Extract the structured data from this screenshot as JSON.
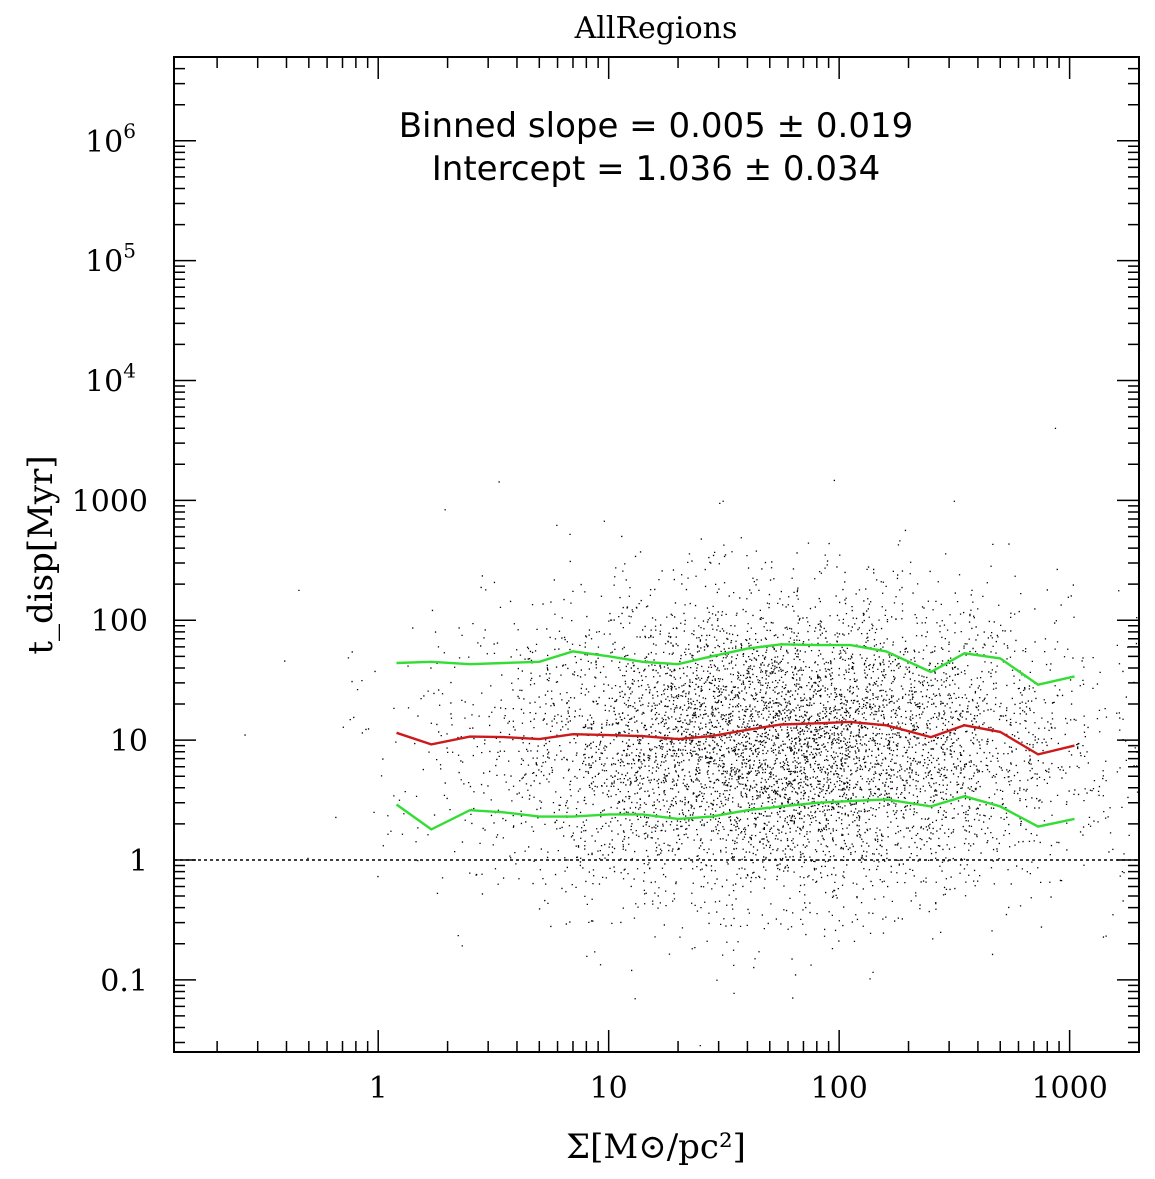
{
  "chart_data": {
    "type": "scatter",
    "title": "AllRegions",
    "xlabel": "Σ[M⊙/pc²]",
    "ylabel": "t_disp[Myr]",
    "x_scale": "log",
    "y_scale": "log",
    "xlim": [
      0.13,
      2000
    ],
    "ylim": [
      0.025,
      5000000
    ],
    "x_ticks": [
      {
        "value": 1,
        "label": "1"
      },
      {
        "value": 10,
        "label": "10"
      },
      {
        "value": 100,
        "label": "100"
      },
      {
        "value": 1000,
        "label": "1000"
      }
    ],
    "y_ticks": [
      {
        "value": 0.1,
        "label": "0.1"
      },
      {
        "value": 1,
        "label": "1"
      },
      {
        "value": 10,
        "label": "10"
      },
      {
        "value": 100,
        "label": "100"
      },
      {
        "value": 1000,
        "label": "1000"
      },
      {
        "value": 10000,
        "base": "10",
        "exp": "4"
      },
      {
        "value": 100000,
        "base": "10",
        "exp": "5"
      },
      {
        "value": 1000000,
        "base": "10",
        "exp": "6"
      }
    ],
    "annotations": {
      "slope": "Binned slope = 0.005 ± 0.019",
      "intercept": "Intercept = 1.036 ± 0.034"
    },
    "reference_line": {
      "y": 1,
      "style": "dotted"
    },
    "scatter_cloud": {
      "n_points": 60000,
      "log_x_center": 1.75,
      "log_x_sigma": 0.62,
      "log_y_center": 0.95,
      "log_y_sigma": 0.62,
      "color": "#000000"
    },
    "series": [
      {
        "name": "median",
        "color": "#cc1a1a",
        "x": [
          1.2,
          1.7,
          2.5,
          3.5,
          5,
          7,
          10,
          14,
          20,
          28,
          40,
          56,
          80,
          112,
          160,
          250,
          350,
          500,
          730,
          1050
        ],
        "y": [
          11.5,
          9.2,
          10.7,
          10.6,
          10.2,
          11.2,
          11.0,
          10.8,
          10.2,
          10.8,
          12.2,
          13.5,
          13.8,
          14.2,
          13.3,
          10.6,
          13.3,
          11.7,
          7.6,
          9.0
        ]
      },
      {
        "name": "upper",
        "color": "#33dd33",
        "x": [
          1.2,
          1.7,
          2.5,
          3.5,
          5,
          7,
          10,
          14,
          20,
          28,
          40,
          56,
          80,
          112,
          160,
          250,
          350,
          500,
          730,
          1050
        ],
        "y": [
          44,
          45,
          43,
          44,
          45,
          55,
          50,
          45,
          43,
          50,
          58,
          63,
          62,
          62,
          55,
          37,
          53,
          48,
          29,
          34
        ]
      },
      {
        "name": "lower",
        "color": "#33dd33",
        "x": [
          1.2,
          1.7,
          2.5,
          3.5,
          5,
          7,
          10,
          14,
          20,
          28,
          40,
          56,
          80,
          112,
          160,
          250,
          350,
          500,
          730,
          1050
        ],
        "y": [
          2.9,
          1.8,
          2.6,
          2.5,
          2.3,
          2.3,
          2.4,
          2.4,
          2.2,
          2.3,
          2.6,
          2.8,
          3.0,
          3.1,
          3.2,
          2.8,
          3.4,
          2.8,
          1.9,
          2.2
        ]
      }
    ]
  }
}
